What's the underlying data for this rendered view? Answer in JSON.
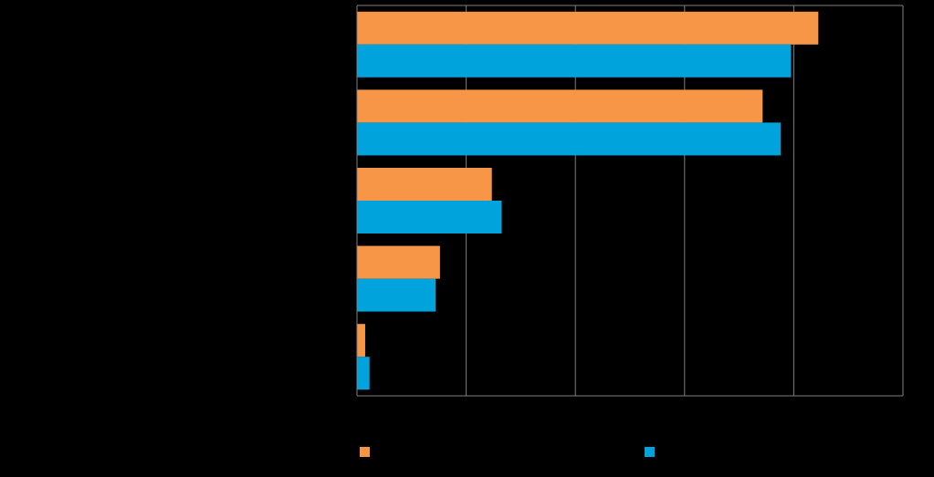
{
  "chart_data": {
    "type": "bar",
    "orientation": "horizontal",
    "categories": [
      "",
      "",
      "",
      "",
      ""
    ],
    "series": [
      {
        "name": "",
        "color": "#F79646",
        "values": [
          84.5,
          74.3,
          24.7,
          15.2,
          1.5
        ]
      },
      {
        "name": "",
        "color": "#00A3DC",
        "values": [
          79.5,
          77.6,
          26.5,
          14.4,
          2.3
        ]
      }
    ],
    "xlim": [
      0,
      100
    ],
    "x_gridlines": [
      0,
      20,
      40,
      60,
      80,
      100
    ],
    "grid": true,
    "legend": "bottom",
    "background": "#000000",
    "gridline_color": "#7F7F7F"
  }
}
